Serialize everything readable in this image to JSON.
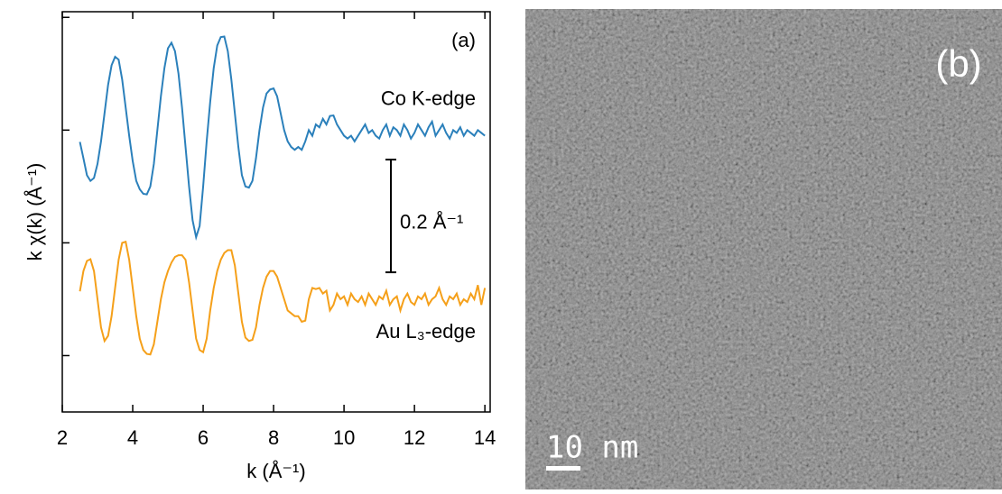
{
  "chart_data": {
    "type": "line",
    "panel_label": "(a)",
    "xlabel": "k (Å⁻¹)",
    "ylabel": "k χ(k) (Å⁻¹)",
    "xlim": [
      2,
      14.15
    ],
    "ylim": [
      -0.3,
      0.41
    ],
    "xticks": [
      2,
      4,
      6,
      8,
      10,
      12,
      14
    ],
    "yticks": [
      -0.2,
      0,
      0.2,
      0.4
    ],
    "scale_bar": {
      "value": 0.2,
      "label": "0.2 Å⁻¹"
    },
    "x": [
      2.5,
      2.6,
      2.7,
      2.8,
      2.9,
      3.0,
      3.1,
      3.2,
      3.3,
      3.4,
      3.5,
      3.6,
      3.7,
      3.8,
      3.9,
      4.0,
      4.1,
      4.2,
      4.3,
      4.4,
      4.5,
      4.6,
      4.7,
      4.8,
      4.9,
      5.0,
      5.1,
      5.2,
      5.3,
      5.4,
      5.5,
      5.6,
      5.7,
      5.8,
      5.9,
      6.0,
      6.1,
      6.2,
      6.3,
      6.4,
      6.5,
      6.6,
      6.7,
      6.8,
      6.9,
      7.0,
      7.1,
      7.2,
      7.3,
      7.4,
      7.5,
      7.6,
      7.7,
      7.8,
      7.9,
      8.0,
      8.1,
      8.2,
      8.3,
      8.4,
      8.5,
      8.6,
      8.7,
      8.8,
      8.9,
      9.0,
      9.1,
      9.2,
      9.3,
      9.4,
      9.5,
      9.6,
      9.7,
      9.8,
      9.9,
      10.0,
      10.1,
      10.2,
      10.3,
      10.4,
      10.5,
      10.6,
      10.7,
      10.8,
      10.9,
      11.0,
      11.1,
      11.2,
      11.3,
      11.4,
      11.5,
      11.6,
      11.7,
      11.8,
      11.9,
      12.0,
      12.1,
      12.2,
      12.3,
      12.4,
      12.5,
      12.6,
      12.7,
      12.8,
      12.9,
      13.0,
      13.1,
      13.2,
      13.3,
      13.4,
      13.5,
      13.6,
      13.7,
      13.8,
      13.9,
      14.0
    ],
    "series": [
      {
        "name": "Co K-edge",
        "color": "#2b80bb",
        "values": [
          0.179,
          0.15,
          0.12,
          0.11,
          0.115,
          0.14,
          0.18,
          0.23,
          0.28,
          0.315,
          0.33,
          0.325,
          0.29,
          0.24,
          0.19,
          0.145,
          0.11,
          0.095,
          0.087,
          0.086,
          0.1,
          0.14,
          0.2,
          0.26,
          0.31,
          0.345,
          0.355,
          0.34,
          0.3,
          0.24,
          0.17,
          0.1,
          0.04,
          0.01,
          0.03,
          0.1,
          0.18,
          0.25,
          0.31,
          0.35,
          0.365,
          0.366,
          0.34,
          0.29,
          0.23,
          0.17,
          0.12,
          0.1,
          0.098,
          0.11,
          0.15,
          0.2,
          0.24,
          0.265,
          0.272,
          0.274,
          0.26,
          0.23,
          0.2,
          0.18,
          0.17,
          0.165,
          0.17,
          0.165,
          0.18,
          0.2,
          0.19,
          0.21,
          0.205,
          0.22,
          0.21,
          0.225,
          0.226,
          0.21,
          0.2,
          0.19,
          0.185,
          0.19,
          0.18,
          0.19,
          0.2,
          0.21,
          0.195,
          0.2,
          0.19,
          0.185,
          0.2,
          0.21,
          0.19,
          0.205,
          0.2,
          0.19,
          0.21,
          0.2,
          0.185,
          0.195,
          0.21,
          0.2,
          0.19,
          0.205,
          0.215,
          0.19,
          0.2,
          0.21,
          0.195,
          0.185,
          0.2,
          0.195,
          0.205,
          0.19,
          0.2,
          0.195,
          0.19,
          0.2,
          0.195,
          0.19
        ]
      },
      {
        "name": "Au L₃-edge",
        "color": "#f5a01a",
        "values": [
          -0.086,
          -0.05,
          -0.032,
          -0.029,
          -0.05,
          -0.1,
          -0.15,
          -0.174,
          -0.165,
          -0.13,
          -0.08,
          -0.03,
          0.0,
          0.002,
          -0.03,
          -0.08,
          -0.13,
          -0.17,
          -0.19,
          -0.197,
          -0.198,
          -0.18,
          -0.14,
          -0.1,
          -0.07,
          -0.05,
          -0.035,
          -0.025,
          -0.022,
          -0.022,
          -0.03,
          -0.07,
          -0.12,
          -0.17,
          -0.19,
          -0.194,
          -0.17,
          -0.12,
          -0.08,
          -0.05,
          -0.03,
          -0.018,
          -0.013,
          -0.013,
          -0.04,
          -0.09,
          -0.14,
          -0.168,
          -0.174,
          -0.172,
          -0.15,
          -0.11,
          -0.08,
          -0.06,
          -0.05,
          -0.05,
          -0.06,
          -0.08,
          -0.1,
          -0.12,
          -0.125,
          -0.13,
          -0.13,
          -0.14,
          -0.138,
          -0.1,
          -0.08,
          -0.082,
          -0.08,
          -0.09,
          -0.085,
          -0.12,
          -0.11,
          -0.09,
          -0.1,
          -0.095,
          -0.11,
          -0.09,
          -0.1,
          -0.105,
          -0.095,
          -0.11,
          -0.09,
          -0.1,
          -0.11,
          -0.095,
          -0.1,
          -0.085,
          -0.11,
          -0.1,
          -0.095,
          -0.12,
          -0.1,
          -0.09,
          -0.105,
          -0.11,
          -0.095,
          -0.1,
          -0.09,
          -0.11,
          -0.1,
          -0.095,
          -0.08,
          -0.1,
          -0.11,
          -0.095,
          -0.1,
          -0.09,
          -0.11,
          -0.1,
          -0.105,
          -0.09,
          -0.1,
          -0.075,
          -0.11,
          -0.08
        ]
      }
    ]
  },
  "image_panel": {
    "label": "(b)",
    "scale_bar": "10 nm"
  }
}
